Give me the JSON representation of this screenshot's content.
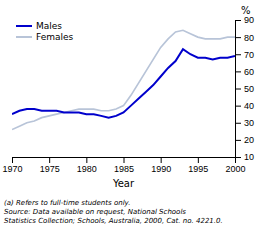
{
  "chart_data": {
    "type": "line",
    "x_label": "Year",
    "y_label": "%",
    "x": [
      1970,
      1971,
      1972,
      1973,
      1974,
      1975,
      1976,
      1977,
      1978,
      1979,
      1980,
      1981,
      1982,
      1983,
      1984,
      1985,
      1986,
      1987,
      1988,
      1989,
      1990,
      1991,
      1992,
      1993,
      1994,
      1995,
      1996,
      1997,
      1998,
      1999,
      2000
    ],
    "series": [
      {
        "name": "Males",
        "color": "#0000cc",
        "values": [
          35,
          37,
          38,
          38,
          37,
          37,
          37,
          36,
          36,
          36,
          35,
          35,
          34,
          33,
          34,
          36,
          40,
          44,
          48,
          52,
          57,
          62,
          66,
          73,
          70,
          68,
          68,
          67,
          68,
          68,
          69
        ]
      },
      {
        "name": "Females",
        "color": "#b8c4d8",
        "values": [
          26,
          28,
          30,
          31,
          33,
          34,
          35,
          36,
          37,
          38,
          38,
          38,
          37,
          37,
          38,
          40,
          46,
          53,
          60,
          67,
          74,
          79,
          83,
          84,
          82,
          80,
          79,
          79,
          79,
          80,
          80
        ]
      }
    ],
    "xlim": [
      1970,
      2000
    ],
    "ylim": [
      10,
      90
    ],
    "xticks": [
      1970,
      1975,
      1980,
      1985,
      1990,
      1995,
      2000
    ],
    "yticks": [
      10,
      20,
      30,
      40,
      50,
      60,
      70,
      80,
      90
    ],
    "grid": false,
    "legend": "top-left",
    "annotations": [
      "(a) Refers to full-time students only.",
      "Source: Data available on request, National Schools",
      "Statistics Collection; Schools, Australia, 2000, Cat. no. 4221.0."
    ]
  }
}
